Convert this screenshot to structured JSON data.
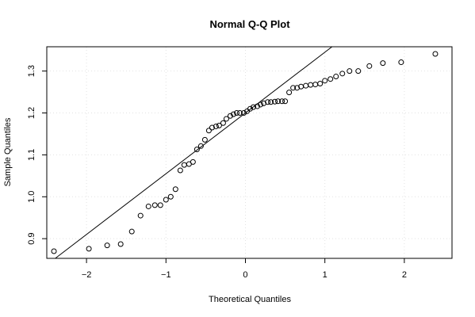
{
  "chart_data": {
    "type": "scatter",
    "title": "Normal Q-Q Plot",
    "xlabel": "Theoretical Quantiles",
    "ylabel": "Sample Quantiles",
    "xlim": [
      -2.5,
      2.6
    ],
    "ylim": [
      0.853,
      1.358
    ],
    "xticks": [
      -2,
      -1,
      0,
      1,
      2
    ],
    "xtick_labels": [
      "−2",
      "−1",
      "0",
      "1",
      "2"
    ],
    "yticks": [
      0.9,
      1.0,
      1.1,
      1.2,
      1.3
    ],
    "ytick_labels": [
      "0.9",
      "1.0",
      "1.1",
      "1.2",
      "1.3"
    ],
    "grid": true,
    "reference_line": {
      "intercept": 1.2,
      "slope": 0.145
    },
    "series": [
      {
        "x": [
          -2.41,
          -1.97,
          -1.74,
          -1.57,
          -1.43,
          -1.32,
          -1.22,
          -1.14,
          -1.07,
          -1.0,
          -0.94,
          -0.88,
          -0.82,
          -0.77,
          -0.71,
          -0.66,
          -0.61,
          -0.56,
          -0.51,
          -0.46,
          -0.42,
          -0.37,
          -0.33,
          -0.28,
          -0.24,
          -0.19,
          -0.15,
          -0.11,
          -0.07,
          -0.02,
          0.02,
          0.06,
          0.1,
          0.15,
          0.19,
          0.23,
          0.28,
          0.32,
          0.37,
          0.41,
          0.46,
          0.5,
          0.55,
          0.6,
          0.65,
          0.7,
          0.76,
          0.82,
          0.88,
          0.94,
          1.0,
          1.07,
          1.14,
          1.22,
          1.31,
          1.42,
          1.56,
          1.73,
          1.96,
          2.39
        ],
        "y": [
          0.87,
          0.876,
          0.884,
          0.887,
          0.917,
          0.955,
          0.977,
          0.98,
          0.98,
          0.993,
          1.0,
          1.018,
          1.063,
          1.076,
          1.078,
          1.083,
          1.113,
          1.121,
          1.136,
          1.158,
          1.165,
          1.168,
          1.17,
          1.176,
          1.186,
          1.193,
          1.197,
          1.2,
          1.2,
          1.2,
          1.204,
          1.21,
          1.214,
          1.216,
          1.22,
          1.223,
          1.226,
          1.226,
          1.227,
          1.228,
          1.228,
          1.228,
          1.249,
          1.26,
          1.26,
          1.263,
          1.265,
          1.267,
          1.268,
          1.27,
          1.277,
          1.281,
          1.287,
          1.294,
          1.3,
          1.3,
          1.312,
          1.319,
          1.321,
          1.341
        ]
      }
    ]
  }
}
